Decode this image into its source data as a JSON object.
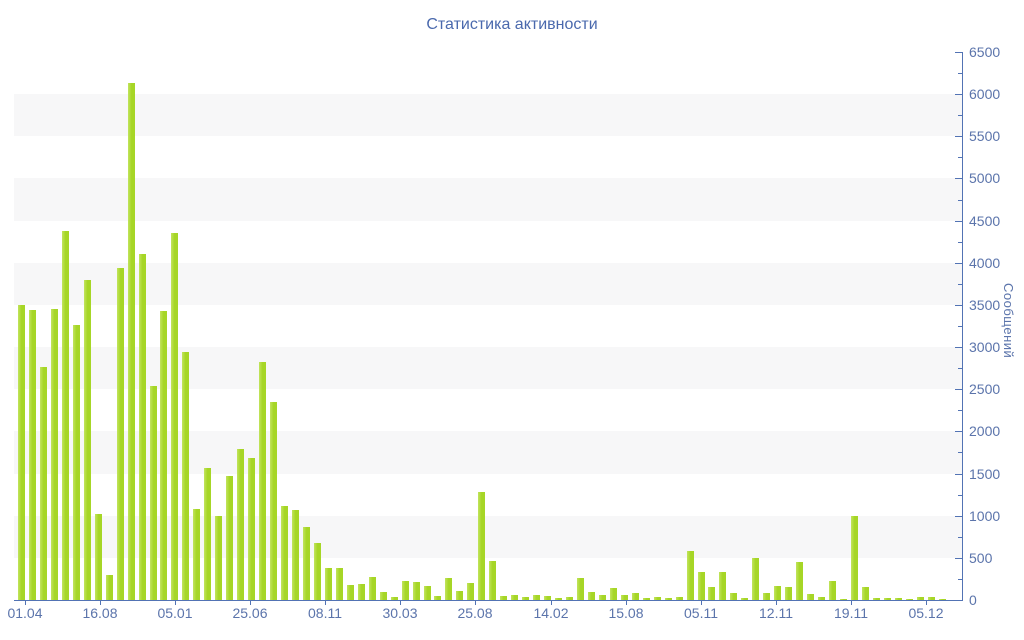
{
  "page": {
    "background": "#ffffff"
  },
  "chart_data": {
    "type": "bar",
    "title": "Статистика активности",
    "xlabel": "",
    "ylabel": "Сообщений",
    "ylim": [
      0,
      6500
    ],
    "y_tick_step": 500,
    "y_minor_tick_step": 250,
    "y_tick_labels": [
      "0",
      "500",
      "1000",
      "1500",
      "2000",
      "2500",
      "3000",
      "3500",
      "4000",
      "4500",
      "5000",
      "5500",
      "6000",
      "6500"
    ],
    "x_tick_labels": [
      "01.04",
      "16.08",
      "05.01",
      "25.06",
      "08.11",
      "30.03",
      "25.08",
      "14.02",
      "15.08",
      "05.11",
      "12.11",
      "19.11",
      "05.12"
    ],
    "values": [
      3500,
      3440,
      2760,
      3450,
      4380,
      3260,
      3800,
      1020,
      300,
      3940,
      6130,
      4100,
      2540,
      3430,
      4350,
      2940,
      1080,
      1570,
      1000,
      1470,
      1790,
      1680,
      2820,
      2350,
      1120,
      1070,
      870,
      680,
      380,
      380,
      180,
      190,
      270,
      90,
      40,
      230,
      210,
      170,
      50,
      260,
      110,
      200,
      1280,
      460,
      50,
      60,
      40,
      60,
      50,
      25,
      40,
      260,
      100,
      60,
      140,
      60,
      80,
      25,
      40,
      20,
      30,
      580,
      330,
      160,
      330,
      80,
      25,
      500,
      80,
      170,
      150,
      450,
      70,
      30,
      220,
      10,
      1000,
      150,
      20,
      20,
      25,
      10,
      30,
      40,
      15
    ],
    "grid": "alternating horizontal gray bands every 500 units (500-1000, 1500-2000, ...)",
    "legend": "none",
    "axis_position": "y-axis on right side",
    "colors": {
      "bar": "#a6d626",
      "bar_highlight": "#c2e45e",
      "axis": "#5273b4",
      "tick_label": "#5b74ab",
      "title": "#4a69ad",
      "band": "#f7f7f8",
      "background": "#ffffff"
    }
  }
}
